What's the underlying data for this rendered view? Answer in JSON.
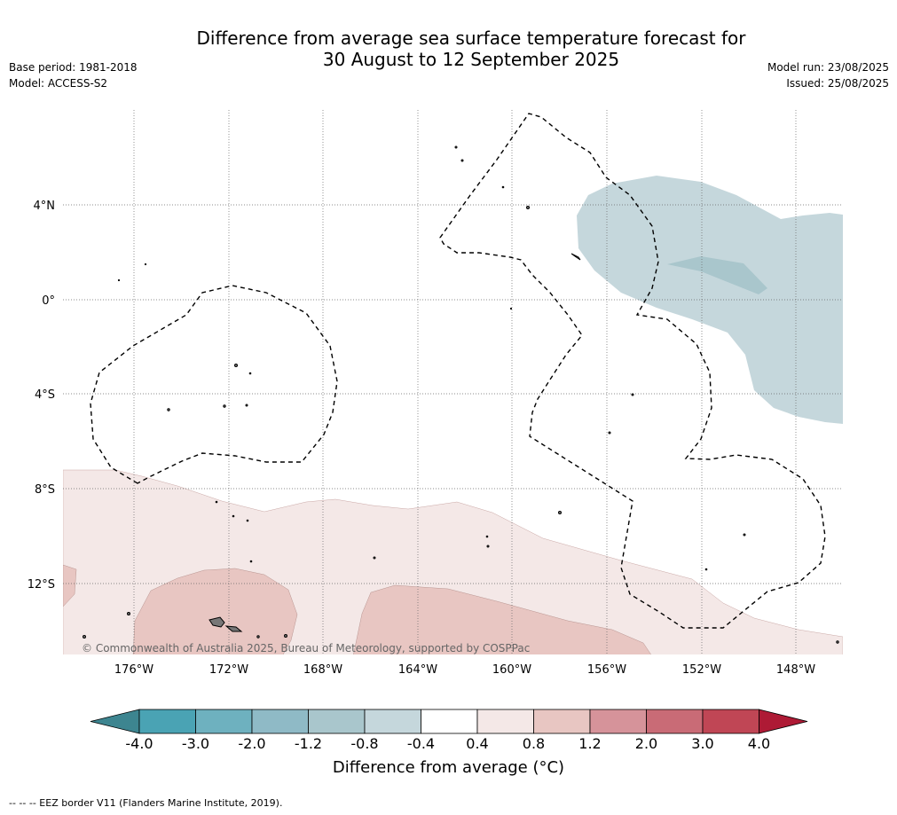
{
  "title_line1": "Difference from average sea surface temperature forecast for",
  "title_line2": "30 August to 12 September 2025",
  "base_period": "Base period: 1981-2018",
  "model": "Model: ACCESS-S2",
  "model_run": "Model run: 23/08/2025",
  "issued": "Issued: 25/08/2025",
  "copyright": "© Commonwealth of Australia 2025, Bureau of Meteorology, supported by COSPPac",
  "footer": "--  --  -- EEZ border V11 (Flanders Marine Institute, 2019).",
  "lon_labels": [
    "176°W",
    "172°W",
    "168°W",
    "164°W",
    "160°W",
    "156°W",
    "152°W",
    "148°W"
  ],
  "lat_labels": [
    "4°N",
    "0°",
    "4°S",
    "8°S",
    "12°S"
  ],
  "colorbar": {
    "label": "Difference from average (°C)",
    "ticks": [
      "-4.0",
      "-3.0",
      "-2.0",
      "-1.2",
      "-0.8",
      "-0.4",
      "0.4",
      "0.8",
      "1.2",
      "2.0",
      "3.0",
      "4.0"
    ],
    "colors": [
      "#3d8590",
      "#4aa3b4",
      "#6eb1bf",
      "#8fbac6",
      "#a9c6cc",
      "#c5d7dc",
      "#ffffff",
      "#f4e8e7",
      "#e8c6c2",
      "#d6939a",
      "#c96b76",
      "#c04655",
      "#ae1a35"
    ]
  },
  "anomaly_colors": {
    "cool_light": "#c5d7dc",
    "cool_mid": "#a9c6cc",
    "warm_light": "#f4e8e7",
    "warm_mid": "#e8c6c2"
  }
}
